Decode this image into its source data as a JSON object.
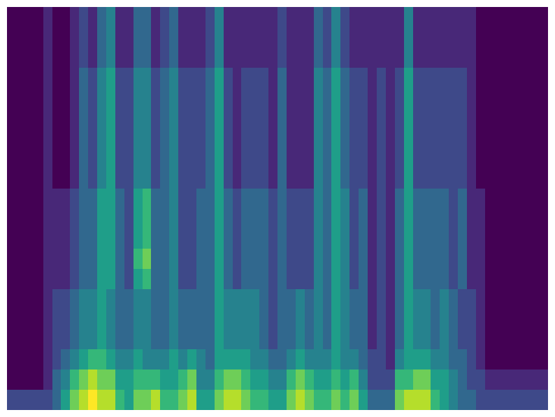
{
  "chart_data": {
    "type": "heatmap",
    "tick_labels": false,
    "color": "viridis",
    "cells": [
      [
        0,
        0,
        0,
        0,
        1,
        0,
        0,
        1,
        2,
        1,
        3,
        4,
        1,
        1,
        3,
        3,
        1,
        2,
        3,
        1,
        1,
        1,
        2,
        4,
        1,
        1,
        1,
        1,
        1,
        1,
        2,
        1,
        1,
        1,
        3,
        2,
        4,
        2,
        1,
        1,
        1,
        1,
        1,
        1,
        4,
        1,
        1,
        1,
        1,
        1,
        1,
        1,
        0,
        0,
        0,
        0,
        0,
        0,
        0,
        0
      ],
      [
        0,
        0,
        0,
        0,
        1,
        0,
        0,
        1,
        2,
        1,
        3,
        4,
        1,
        1,
        3,
        3,
        1,
        2,
        3,
        1,
        1,
        1,
        2,
        4,
        1,
        1,
        1,
        1,
        1,
        1,
        2,
        1,
        1,
        1,
        3,
        2,
        4,
        2,
        1,
        1,
        1,
        1,
        1,
        1,
        4,
        1,
        1,
        1,
        1,
        1,
        1,
        1,
        0,
        0,
        0,
        0,
        0,
        0,
        0,
        0
      ],
      [
        0,
        0,
        0,
        0,
        1,
        0,
        0,
        1,
        2,
        1,
        3,
        4,
        1,
        1,
        3,
        3,
        1,
        2,
        3,
        1,
        1,
        1,
        2,
        4,
        1,
        1,
        1,
        1,
        1,
        1,
        2,
        1,
        1,
        1,
        3,
        2,
        4,
        2,
        1,
        1,
        1,
        1,
        1,
        1,
        4,
        1,
        1,
        1,
        1,
        1,
        1,
        1,
        0,
        0,
        0,
        0,
        0,
        0,
        0,
        0
      ],
      [
        0,
        0,
        0,
        0,
        1,
        0,
        0,
        1,
        3,
        2,
        4,
        5,
        2,
        2,
        4,
        4,
        2,
        3,
        4,
        2,
        2,
        2,
        3,
        5,
        2,
        1,
        2,
        2,
        2,
        1,
        3,
        1,
        1,
        1,
        4,
        3,
        5,
        3,
        2,
        2,
        1,
        2,
        1,
        2,
        5,
        2,
        2,
        2,
        2,
        2,
        2,
        1,
        0,
        0,
        0,
        0,
        0,
        0,
        0,
        0
      ],
      [
        0,
        0,
        0,
        0,
        1,
        0,
        0,
        1,
        3,
        2,
        4,
        5,
        2,
        2,
        4,
        4,
        2,
        3,
        4,
        2,
        2,
        2,
        3,
        5,
        2,
        1,
        2,
        2,
        2,
        1,
        3,
        1,
        1,
        1,
        4,
        3,
        5,
        3,
        2,
        2,
        1,
        2,
        1,
        2,
        5,
        2,
        2,
        2,
        2,
        2,
        2,
        1,
        0,
        0,
        0,
        0,
        0,
        0,
        0,
        0
      ],
      [
        0,
        0,
        0,
        0,
        1,
        0,
        0,
        1,
        3,
        2,
        4,
        5,
        2,
        2,
        4,
        4,
        2,
        3,
        4,
        2,
        2,
        2,
        3,
        5,
        2,
        1,
        2,
        2,
        2,
        1,
        3,
        1,
        1,
        1,
        4,
        3,
        5,
        3,
        2,
        2,
        1,
        2,
        1,
        2,
        5,
        2,
        2,
        2,
        2,
        2,
        2,
        1,
        0,
        0,
        0,
        0,
        0,
        0,
        0,
        0
      ],
      [
        0,
        0,
        0,
        0,
        1,
        0,
        0,
        1,
        3,
        2,
        4,
        5,
        2,
        2,
        4,
        4,
        2,
        3,
        4,
        2,
        2,
        2,
        3,
        5,
        2,
        1,
        2,
        2,
        2,
        1,
        3,
        1,
        1,
        1,
        4,
        3,
        5,
        3,
        2,
        2,
        1,
        2,
        1,
        2,
        5,
        2,
        2,
        2,
        2,
        2,
        2,
        1,
        0,
        0,
        0,
        0,
        0,
        0,
        0,
        0
      ],
      [
        0,
        0,
        0,
        0,
        1,
        0,
        0,
        1,
        3,
        2,
        4,
        5,
        2,
        2,
        4,
        4,
        2,
        3,
        4,
        2,
        2,
        2,
        3,
        5,
        2,
        1,
        2,
        2,
        2,
        1,
        3,
        1,
        1,
        1,
        4,
        3,
        5,
        3,
        2,
        2,
        1,
        2,
        1,
        2,
        5,
        2,
        2,
        2,
        2,
        2,
        2,
        1,
        0,
        0,
        0,
        0,
        0,
        0,
        0,
        0
      ],
      [
        0,
        0,
        0,
        0,
        1,
        0,
        0,
        1,
        3,
        2,
        4,
        5,
        2,
        2,
        4,
        4,
        2,
        3,
        4,
        2,
        2,
        2,
        3,
        5,
        2,
        1,
        2,
        2,
        2,
        1,
        3,
        1,
        1,
        1,
        4,
        3,
        5,
        3,
        2,
        2,
        1,
        2,
        1,
        2,
        5,
        2,
        2,
        2,
        2,
        2,
        2,
        1,
        0,
        0,
        0,
        0,
        0,
        0,
        0,
        0
      ],
      [
        0,
        0,
        0,
        0,
        1,
        1,
        1,
        2,
        3,
        3,
        5,
        5,
        3,
        2,
        5,
        6,
        3,
        3,
        4,
        2,
        2,
        3,
        3,
        5,
        3,
        2,
        3,
        3,
        3,
        2,
        3,
        2,
        2,
        2,
        4,
        3,
        5,
        4,
        2,
        3,
        1,
        2,
        1,
        3,
        5,
        3,
        3,
        3,
        3,
        2,
        3,
        1,
        1,
        0,
        0,
        0,
        0,
        0,
        0,
        0
      ],
      [
        0,
        0,
        0,
        0,
        1,
        1,
        1,
        2,
        3,
        3,
        5,
        5,
        3,
        2,
        5,
        6,
        3,
        3,
        4,
        2,
        2,
        3,
        3,
        5,
        3,
        2,
        3,
        3,
        3,
        2,
        3,
        2,
        2,
        2,
        4,
        3,
        5,
        4,
        2,
        3,
        1,
        2,
        1,
        3,
        5,
        3,
        3,
        3,
        3,
        2,
        3,
        1,
        1,
        0,
        0,
        0,
        0,
        0,
        0,
        0
      ],
      [
        0,
        0,
        0,
        0,
        1,
        1,
        1,
        2,
        3,
        3,
        5,
        5,
        3,
        2,
        5,
        6,
        3,
        3,
        4,
        2,
        2,
        3,
        3,
        5,
        3,
        2,
        3,
        3,
        3,
        2,
        3,
        2,
        2,
        2,
        4,
        3,
        5,
        4,
        2,
        3,
        1,
        2,
        1,
        3,
        5,
        3,
        3,
        3,
        3,
        2,
        3,
        1,
        1,
        0,
        0,
        0,
        0,
        0,
        0,
        0
      ],
      [
        0,
        0,
        0,
        0,
        1,
        1,
        1,
        2,
        3,
        3,
        5,
        5,
        3,
        2,
        6,
        7,
        3,
        3,
        4,
        2,
        2,
        3,
        3,
        5,
        3,
        2,
        3,
        3,
        3,
        2,
        3,
        2,
        2,
        2,
        4,
        3,
        5,
        4,
        2,
        3,
        1,
        2,
        1,
        3,
        5,
        3,
        3,
        3,
        3,
        2,
        3,
        1,
        1,
        0,
        0,
        0,
        0,
        0,
        0,
        0
      ],
      [
        0,
        0,
        0,
        0,
        1,
        1,
        1,
        2,
        3,
        3,
        5,
        5,
        3,
        2,
        5,
        6,
        3,
        3,
        4,
        2,
        2,
        3,
        3,
        5,
        3,
        2,
        3,
        3,
        3,
        2,
        3,
        2,
        2,
        2,
        4,
        3,
        5,
        4,
        2,
        3,
        1,
        2,
        1,
        3,
        5,
        3,
        3,
        3,
        3,
        2,
        3,
        1,
        1,
        0,
        0,
        0,
        0,
        0,
        0,
        0
      ],
      [
        0,
        0,
        0,
        0,
        1,
        2,
        2,
        3,
        4,
        4,
        5,
        4,
        3,
        3,
        4,
        4,
        3,
        3,
        4,
        3,
        3,
        3,
        3,
        5,
        4,
        4,
        4,
        4,
        3,
        2,
        3,
        3,
        4,
        3,
        4,
        3,
        5,
        4,
        3,
        3,
        1,
        2,
        1,
        3,
        5,
        4,
        4,
        3,
        4,
        3,
        2,
        2,
        1,
        0,
        0,
        0,
        0,
        0,
        0,
        0
      ],
      [
        0,
        0,
        0,
        0,
        1,
        2,
        2,
        3,
        4,
        4,
        5,
        4,
        3,
        3,
        4,
        4,
        3,
        3,
        4,
        3,
        3,
        3,
        3,
        5,
        4,
        4,
        4,
        4,
        3,
        2,
        3,
        3,
        4,
        3,
        4,
        3,
        5,
        4,
        3,
        3,
        1,
        2,
        1,
        3,
        5,
        4,
        4,
        3,
        4,
        3,
        2,
        2,
        1,
        0,
        0,
        0,
        0,
        0,
        0,
        0
      ],
      [
        0,
        0,
        0,
        0,
        1,
        2,
        2,
        3,
        4,
        4,
        5,
        4,
        3,
        3,
        4,
        4,
        3,
        3,
        4,
        3,
        3,
        3,
        3,
        5,
        4,
        4,
        4,
        4,
        3,
        2,
        3,
        3,
        4,
        3,
        4,
        3,
        5,
        4,
        3,
        3,
        1,
        2,
        1,
        3,
        5,
        4,
        4,
        3,
        4,
        3,
        2,
        2,
        1,
        0,
        0,
        0,
        0,
        0,
        0,
        0
      ],
      [
        0,
        0,
        0,
        0,
        1,
        2,
        3,
        4,
        5,
        6,
        6,
        5,
        4,
        4,
        5,
        4,
        4,
        4,
        5,
        4,
        5,
        4,
        3,
        5,
        5,
        5,
        5,
        4,
        4,
        3,
        3,
        4,
        5,
        4,
        4,
        4,
        5,
        4,
        4,
        3,
        2,
        2,
        1,
        4,
        5,
        5,
        5,
        4,
        4,
        3,
        3,
        2,
        1,
        0,
        0,
        0,
        0,
        0,
        0,
        0
      ],
      [
        0,
        0,
        0,
        0,
        1,
        3,
        4,
        6,
        7,
        8,
        7,
        7,
        5,
        5,
        6,
        6,
        6,
        5,
        5,
        6,
        7,
        4,
        4,
        6,
        7,
        7,
        6,
        5,
        5,
        4,
        4,
        6,
        7,
        6,
        5,
        5,
        6,
        5,
        6,
        4,
        2,
        2,
        2,
        6,
        6,
        7,
        7,
        5,
        5,
        4,
        3,
        2,
        2,
        1,
        1,
        1,
        1,
        1,
        1,
        1
      ],
      [
        2,
        2,
        2,
        2,
        2,
        3,
        5,
        7,
        8,
        9,
        8,
        8,
        6,
        5,
        7,
        7,
        8,
        6,
        6,
        7,
        8,
        5,
        5,
        7,
        8,
        8,
        7,
        6,
        6,
        5,
        5,
        7,
        8,
        7,
        6,
        6,
        7,
        6,
        7,
        5,
        3,
        3,
        3,
        7,
        8,
        8,
        8,
        6,
        5,
        4,
        3,
        3,
        2,
        2,
        2,
        2,
        2,
        2,
        2,
        2
      ]
    ]
  }
}
